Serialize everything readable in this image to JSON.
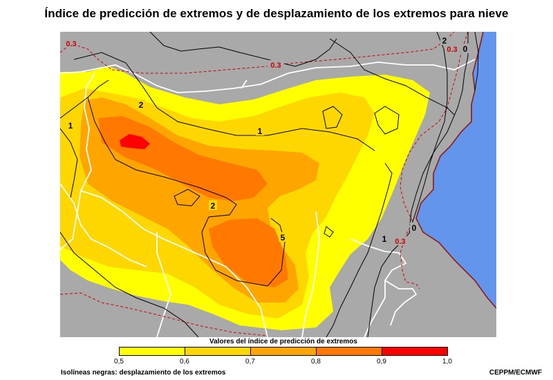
{
  "title": "Índice de predicción de extremos y de desplazamiento de los extremos para nieve",
  "legend": {
    "title": "Valores del índice de predicción de extremos",
    "colors": [
      "#ffff00",
      "#ffd700",
      "#ffa500",
      "#ff7800",
      "#ff0000"
    ],
    "ticks": [
      "0,5",
      "0,6",
      "0,7",
      "0,8",
      "0,9",
      "1,0"
    ]
  },
  "map": {
    "land_color": "#a9a9a9",
    "sea_color": "#6495ed",
    "coast_color": "#8b1a1a",
    "border_color": "#ffffff",
    "contour_labels": [
      "2",
      "1",
      "2",
      "5",
      "1",
      "1",
      "0",
      "2",
      "0"
    ],
    "dashed_labels": [
      "0.3",
      "0.3",
      "0.3",
      "0.3"
    ]
  },
  "footnote": "Isolíneas negras: desplazamiento de los extremos",
  "credit": "CEPPM/ECMWF"
}
